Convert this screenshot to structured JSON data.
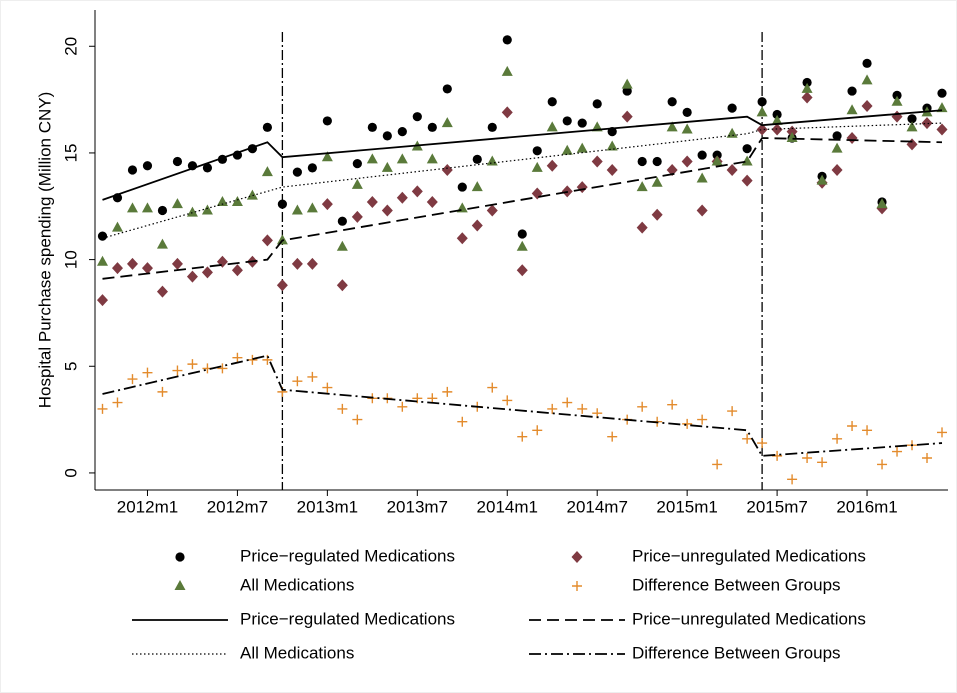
{
  "chart_data": {
    "type": "scatter",
    "ylabel": "Hospital Purchase spending (Million CNY)",
    "xlim": [
      620.5,
      677.4
    ],
    "ylim": [
      -0.8,
      21.7
    ],
    "yticks": [
      0,
      5,
      10,
      15,
      20
    ],
    "xticks": [
      {
        "value": 624,
        "label": "2012m1"
      },
      {
        "value": 630,
        "label": "2012m7"
      },
      {
        "value": 636,
        "label": "2013m1"
      },
      {
        "value": 642,
        "label": "2013m7"
      },
      {
        "value": 648,
        "label": "2014m1"
      },
      {
        "value": 654,
        "label": "2014m7"
      },
      {
        "value": 660,
        "label": "2015m1"
      },
      {
        "value": 666,
        "label": "2015m7"
      },
      {
        "value": 672,
        "label": "2016m1"
      }
    ],
    "xlines": [
      633,
      665
    ],
    "grid": false,
    "legend": "bottom",
    "series": [
      {
        "name": "Price−regulated Medications",
        "kind": "scatter",
        "marker": "circle",
        "color": "#000000",
        "x": [
          621,
          622,
          623,
          624,
          625,
          626,
          627,
          628,
          629,
          630,
          631,
          632,
          633,
          634,
          635,
          636,
          637,
          638,
          639,
          640,
          641,
          642,
          643,
          644,
          645,
          646,
          647,
          648,
          649,
          650,
          651,
          652,
          653,
          654,
          655,
          656,
          657,
          658,
          659,
          660,
          661,
          662,
          663,
          664,
          665,
          666,
          667,
          668,
          669,
          670,
          671,
          672,
          673,
          674,
          675,
          676,
          677
        ],
        "values": [
          11.1,
          12.9,
          14.2,
          14.4,
          12.3,
          14.6,
          14.4,
          14.3,
          14.7,
          14.9,
          15.2,
          16.2,
          12.6,
          14.1,
          14.3,
          16.5,
          11.8,
          14.5,
          16.2,
          15.8,
          16.0,
          16.7,
          16.2,
          18.0,
          13.4,
          14.7,
          16.2,
          20.3,
          11.2,
          15.1,
          17.4,
          16.5,
          16.4,
          17.3,
          16.0,
          17.9,
          14.6,
          14.6,
          17.4,
          16.9,
          14.9,
          14.9,
          17.1,
          15.2,
          17.4,
          16.8,
          15.7,
          18.3,
          13.9,
          15.8,
          17.9,
          19.2,
          12.7,
          17.7,
          16.6,
          17.1,
          17.8
        ]
      },
      {
        "name": "Price−unregulated Medications",
        "kind": "scatter",
        "marker": "diamond",
        "color": "#7f3a42",
        "x": [
          621,
          622,
          623,
          624,
          625,
          626,
          627,
          628,
          629,
          630,
          631,
          632,
          633,
          634,
          635,
          636,
          637,
          638,
          639,
          640,
          641,
          642,
          643,
          644,
          645,
          646,
          647,
          648,
          649,
          650,
          651,
          652,
          653,
          654,
          655,
          656,
          657,
          658,
          659,
          660,
          661,
          662,
          663,
          664,
          665,
          666,
          667,
          668,
          669,
          670,
          671,
          672,
          673,
          674,
          675,
          676,
          677
        ],
        "values": [
          8.1,
          9.6,
          9.8,
          9.6,
          8.5,
          9.8,
          9.2,
          9.4,
          9.9,
          9.5,
          9.9,
          10.9,
          8.8,
          9.8,
          9.8,
          12.6,
          8.8,
          12.0,
          12.7,
          12.3,
          12.9,
          13.2,
          12.7,
          14.2,
          11.0,
          11.6,
          12.3,
          16.9,
          9.5,
          13.1,
          14.4,
          13.2,
          13.4,
          14.6,
          14.2,
          16.7,
          11.5,
          12.1,
          14.2,
          14.6,
          12.3,
          14.6,
          14.2,
          13.7,
          16.1,
          16.1,
          16.0,
          17.6,
          13.6,
          14.2,
          15.7,
          17.2,
          12.4,
          16.7,
          15.4,
          16.4,
          16.1
        ]
      },
      {
        "name": "All Medications",
        "kind": "scatter",
        "marker": "triangle",
        "color": "#5a7a3a",
        "x": [
          621,
          622,
          623,
          624,
          625,
          626,
          627,
          628,
          629,
          630,
          631,
          632,
          633,
          634,
          635,
          636,
          637,
          638,
          639,
          640,
          641,
          642,
          643,
          644,
          645,
          646,
          647,
          648,
          649,
          650,
          651,
          652,
          653,
          654,
          655,
          656,
          657,
          658,
          659,
          660,
          661,
          662,
          663,
          664,
          665,
          666,
          667,
          668,
          669,
          670,
          671,
          672,
          673,
          674,
          675,
          676,
          677
        ],
        "values": [
          9.9,
          11.5,
          12.4,
          12.4,
          10.7,
          12.6,
          12.2,
          12.3,
          12.7,
          12.7,
          13.0,
          14.1,
          10.9,
          12.3,
          12.4,
          14.8,
          10.6,
          13.5,
          14.7,
          14.3,
          14.7,
          15.3,
          14.7,
          16.4,
          12.4,
          13.4,
          14.6,
          18.8,
          10.6,
          14.3,
          16.2,
          15.1,
          15.2,
          16.2,
          15.3,
          18.2,
          13.4,
          13.6,
          16.2,
          16.1,
          13.8,
          14.6,
          15.9,
          14.6,
          16.9,
          16.5,
          15.7,
          18.0,
          13.7,
          15.2,
          17.0,
          18.4,
          12.6,
          17.4,
          16.2,
          16.9,
          17.1
        ]
      },
      {
        "name": "Difference Between Groups",
        "kind": "scatter",
        "marker": "plus",
        "color": "#e38b2c",
        "x": [
          621,
          622,
          623,
          624,
          625,
          626,
          627,
          628,
          629,
          630,
          631,
          632,
          633,
          634,
          635,
          636,
          637,
          638,
          639,
          640,
          641,
          642,
          643,
          644,
          645,
          646,
          647,
          648,
          649,
          650,
          651,
          652,
          653,
          654,
          655,
          656,
          657,
          658,
          659,
          660,
          661,
          662,
          663,
          664,
          665,
          666,
          667,
          668,
          669,
          670,
          671,
          672,
          673,
          674,
          675,
          676,
          677
        ],
        "values": [
          3.0,
          3.3,
          4.4,
          4.7,
          3.8,
          4.8,
          5.1,
          4.9,
          4.9,
          5.4,
          5.3,
          5.3,
          3.8,
          4.3,
          4.5,
          4.0,
          3.0,
          2.5,
          3.5,
          3.5,
          3.1,
          3.5,
          3.5,
          3.8,
          2.4,
          3.1,
          4.0,
          3.4,
          1.7,
          2.0,
          3.0,
          3.3,
          3.0,
          2.8,
          1.7,
          2.5,
          3.1,
          2.4,
          3.2,
          2.3,
          2.5,
          0.4,
          2.9,
          1.6,
          1.4,
          0.8,
          -0.3,
          0.7,
          0.5,
          1.6,
          2.2,
          2.0,
          0.4,
          1.0,
          1.3,
          0.7,
          1.9
        ]
      },
      {
        "name": "Price−regulated Medications",
        "kind": "line",
        "style": "solid",
        "color": "#000000",
        "x": [
          621,
          632,
          633,
          664,
          665,
          677
        ],
        "values": [
          12.8,
          15.5,
          14.8,
          16.7,
          16.3,
          17.0
        ]
      },
      {
        "name": "Price−unregulated Medications",
        "kind": "line",
        "style": "dash",
        "color": "#000000",
        "x": [
          621,
          632,
          633,
          664,
          665,
          677
        ],
        "values": [
          9.1,
          10.0,
          10.9,
          14.6,
          15.7,
          15.5
        ]
      },
      {
        "name": "All Medications",
        "kind": "line",
        "style": "dot",
        "color": "#000000",
        "x": [
          621,
          632,
          633,
          664,
          665,
          677
        ],
        "values": [
          11.0,
          13.2,
          13.4,
          15.9,
          16.1,
          16.4
        ]
      },
      {
        "name": "Difference Between Groups",
        "kind": "line",
        "style": "dashdot",
        "color": "#000000",
        "x": [
          621,
          632,
          633,
          664,
          665,
          677
        ],
        "values": [
          3.7,
          5.5,
          3.9,
          2.0,
          0.8,
          1.4
        ]
      }
    ]
  }
}
